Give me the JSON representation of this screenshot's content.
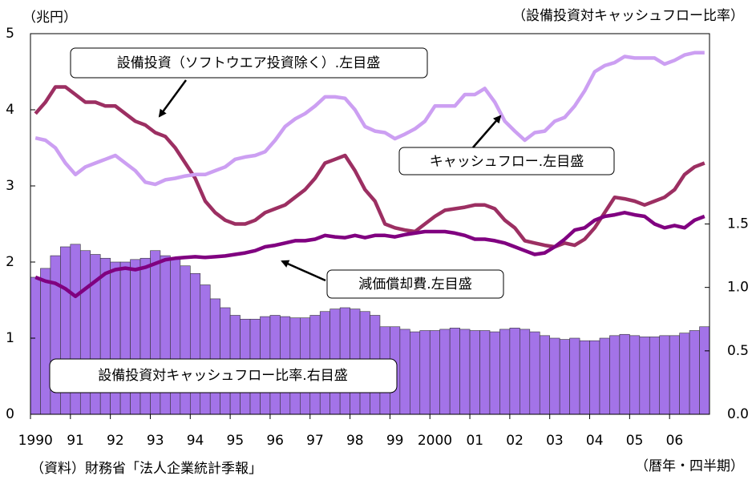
{
  "chart_data": {
    "type": "combo",
    "y_label": "（兆円）",
    "y2_label": "（設備投資対キャッシュフロー比率）",
    "source": "（資料）財務省「法人企業統計季報」",
    "x_label": "（暦年・四半期）",
    "categories": [
      "1990",
      null,
      null,
      null,
      "91",
      null,
      null,
      null,
      "92",
      null,
      null,
      null,
      "93",
      null,
      null,
      null,
      "94",
      null,
      null,
      null,
      "95",
      null,
      null,
      null,
      "96",
      null,
      null,
      null,
      "97",
      null,
      null,
      null,
      "98",
      null,
      null,
      null,
      "99",
      null,
      null,
      null,
      "2000",
      null,
      null,
      null,
      "01",
      null,
      null,
      null,
      "02",
      null,
      null,
      null,
      "03",
      null,
      null,
      null,
      "04",
      null,
      null,
      null,
      "05",
      null,
      null,
      null,
      "06",
      null,
      null,
      null
    ],
    "ylim": [
      0,
      5
    ],
    "yticks": [
      0,
      1,
      2,
      3,
      4,
      5
    ],
    "y2lim": [
      0,
      3
    ],
    "y2ticks": [
      {
        "value": 0,
        "label": "0.0"
      },
      {
        "value": 0.5,
        "label": "0.5"
      },
      {
        "value": 1,
        "label": "1.0"
      },
      {
        "value": 1.5,
        "label": "1.5"
      }
    ],
    "series": [
      {
        "name": "設備投資対キャッシュフロー比率.右目盛",
        "type": "bar",
        "axis": "y2",
        "color": "#a373e8",
        "values": [
          1.08,
          1.15,
          1.25,
          1.32,
          1.34,
          1.29,
          1.26,
          1.23,
          1.2,
          1.2,
          1.22,
          1.23,
          1.29,
          1.25,
          1.23,
          1.17,
          1.11,
          1.02,
          0.91,
          0.84,
          0.78,
          0.75,
          0.75,
          0.77,
          0.78,
          0.77,
          0.76,
          0.76,
          0.78,
          0.81,
          0.83,
          0.84,
          0.83,
          0.81,
          0.78,
          0.69,
          0.69,
          0.67,
          0.65,
          0.66,
          0.66,
          0.67,
          0.68,
          0.67,
          0.66,
          0.66,
          0.65,
          0.67,
          0.68,
          0.67,
          0.65,
          0.62,
          0.6,
          0.59,
          0.6,
          0.58,
          0.58,
          0.6,
          0.62,
          0.63,
          0.62,
          0.61,
          0.61,
          0.62,
          0.62,
          0.64,
          0.66,
          0.69
        ]
      },
      {
        "name": "設備投資（ソフトウエア投資除く）.左目盛",
        "type": "line",
        "color": "#9c2f62",
        "values": [
          3.95,
          4.1,
          4.3,
          4.3,
          4.2,
          4.1,
          4.1,
          4.05,
          4.05,
          3.95,
          3.85,
          3.8,
          3.7,
          3.65,
          3.5,
          3.3,
          3.1,
          2.8,
          2.65,
          2.55,
          2.5,
          2.5,
          2.55,
          2.65,
          2.7,
          2.75,
          2.85,
          2.95,
          3.1,
          3.3,
          3.35,
          3.4,
          3.2,
          2.95,
          2.8,
          2.5,
          2.45,
          2.42,
          2.4,
          2.5,
          2.6,
          2.68,
          2.7,
          2.72,
          2.75,
          2.75,
          2.7,
          2.55,
          2.45,
          2.28,
          2.25,
          2.22,
          2.2,
          2.25,
          2.22,
          2.3,
          2.45,
          2.65,
          2.85,
          2.83,
          2.8,
          2.75,
          2.8,
          2.85,
          2.95,
          3.15,
          3.25,
          3.3
        ]
      },
      {
        "name": "キャッシュフロー.左目盛",
        "type": "line",
        "color": "#cc9ff2",
        "values": [
          3.63,
          3.6,
          3.5,
          3.3,
          3.15,
          3.25,
          3.3,
          3.35,
          3.4,
          3.3,
          3.2,
          3.05,
          3.02,
          3.08,
          3.1,
          3.13,
          3.15,
          3.15,
          3.2,
          3.25,
          3.35,
          3.38,
          3.4,
          3.45,
          3.6,
          3.78,
          3.88,
          3.95,
          4.05,
          4.17,
          4.17,
          4.15,
          4.0,
          3.78,
          3.72,
          3.7,
          3.62,
          3.68,
          3.75,
          3.85,
          4.05,
          4.05,
          4.05,
          4.2,
          4.2,
          4.28,
          4.1,
          3.85,
          3.72,
          3.6,
          3.7,
          3.72,
          3.85,
          3.9,
          4.05,
          4.25,
          4.5,
          4.58,
          4.62,
          4.7,
          4.68,
          4.68,
          4.68,
          4.6,
          4.65,
          4.72,
          4.75,
          4.75
        ]
      },
      {
        "name": "減価償却費.左目盛",
        "type": "line",
        "color": "#800080",
        "values": [
          1.8,
          1.75,
          1.72,
          1.65,
          1.55,
          1.65,
          1.75,
          1.85,
          1.9,
          1.92,
          1.9,
          1.93,
          1.98,
          2.03,
          2.05,
          2.06,
          2.07,
          2.06,
          2.07,
          2.08,
          2.1,
          2.12,
          2.15,
          2.2,
          2.22,
          2.25,
          2.28,
          2.28,
          2.3,
          2.35,
          2.33,
          2.32,
          2.35,
          2.32,
          2.35,
          2.35,
          2.33,
          2.36,
          2.38,
          2.4,
          2.4,
          2.4,
          2.38,
          2.35,
          2.3,
          2.3,
          2.28,
          2.25,
          2.2,
          2.15,
          2.1,
          2.12,
          2.2,
          2.3,
          2.42,
          2.45,
          2.55,
          2.6,
          2.62,
          2.65,
          2.62,
          2.6,
          2.5,
          2.45,
          2.48,
          2.45,
          2.55,
          2.6
        ]
      }
    ]
  }
}
